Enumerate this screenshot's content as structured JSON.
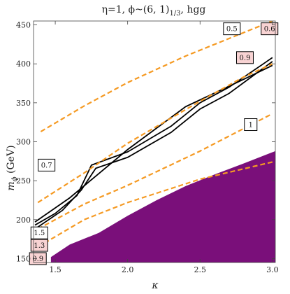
{
  "chart_data": {
    "type": "line",
    "title": "η=1, ϕ~(6, 1)",
    "title_sub": "1/3",
    "title_end": ", hgg",
    "xlabel": "κ",
    "ylabel": "m",
    "ylabel_sub": "ϕ",
    "ylabel_end": " (GeV)",
    "xlim": [
      1.35,
      3.02
    ],
    "ylim": [
      145,
      455
    ],
    "x_ticks": [
      1.5,
      2.0,
      2.5,
      3.0
    ],
    "x_tick_labels": [
      "1.5",
      "2.0",
      "2.5",
      "3.0"
    ],
    "y_ticks": [
      150,
      200,
      250,
      300,
      350,
      400,
      450
    ],
    "y_tick_labels": [
      "150",
      "200",
      "250",
      "300",
      "350",
      "400",
      "450"
    ],
    "colors": {
      "contour": "#000000",
      "dashed": "#f59a23",
      "excluded": "#7a0f7a",
      "box_pink": "#f8d3d3"
    },
    "series": [
      {
        "style": "solid",
        "x": [
          1.36,
          1.6,
          2.0,
          2.4,
          2.8,
          3.0
        ],
        "y": [
          197,
          228,
          290,
          345,
          380,
          398
        ]
      },
      {
        "style": "solid",
        "x": [
          1.36,
          1.5,
          1.65,
          1.75,
          2.0,
          2.3,
          2.5,
          2.7,
          3.0
        ],
        "y": [
          193,
          208,
          231,
          270,
          287,
          320,
          350,
          370,
          408
        ]
      },
      {
        "style": "solid",
        "x": [
          1.36,
          1.55,
          1.68,
          1.78,
          2.0,
          2.3,
          2.5,
          2.7,
          3.0
        ],
        "y": [
          188,
          212,
          238,
          266,
          280,
          312,
          342,
          362,
          403
        ]
      },
      {
        "style": "dashed",
        "x": [
          1.4,
          1.7,
          2.0,
          2.4,
          2.8,
          3.0
        ],
        "y": [
          313,
          346,
          376,
          410,
          440,
          455
        ]
      },
      {
        "style": "dashed",
        "x": [
          1.38,
          1.7,
          2.0,
          2.5,
          2.8,
          3.0
        ],
        "y": [
          222,
          260,
          298,
          352,
          383,
          400
        ]
      },
      {
        "style": "dashed",
        "x": [
          1.38,
          1.7,
          2.0,
          2.5,
          3.0
        ],
        "y": [
          188,
          220,
          244,
          288,
          336
        ]
      },
      {
        "style": "dashed",
        "x": [
          1.38,
          1.7,
          2.0,
          2.5,
          3.0
        ],
        "y": [
          165,
          200,
          222,
          252,
          274
        ]
      }
    ],
    "excluded_region": {
      "x": [
        1.47,
        1.6,
        1.8,
        2.0,
        2.2,
        2.4,
        2.6,
        2.8,
        3.02
      ],
      "y": [
        152,
        168,
        183,
        205,
        225,
        243,
        258,
        272,
        288
      ]
    },
    "contour_labels": [
      {
        "text": "0.5",
        "x": 2.72,
        "y": 445,
        "pink": false
      },
      {
        "text": "0.6",
        "x": 2.98,
        "y": 445,
        "pink": true
      },
      {
        "text": "0.9",
        "x": 2.81,
        "y": 408,
        "pink": true
      },
      {
        "text": "1",
        "x": 2.85,
        "y": 322,
        "pink": false
      },
      {
        "text": "0.7",
        "x": 1.44,
        "y": 270,
        "pink": false
      },
      {
        "text": "1.5",
        "x": 1.39,
        "y": 183,
        "pink": false
      },
      {
        "text": "1.3",
        "x": 1.39,
        "y": 167,
        "pink": true
      },
      {
        "text": "0.9",
        "x": 1.38,
        "y": 150,
        "pink": true
      }
    ]
  }
}
